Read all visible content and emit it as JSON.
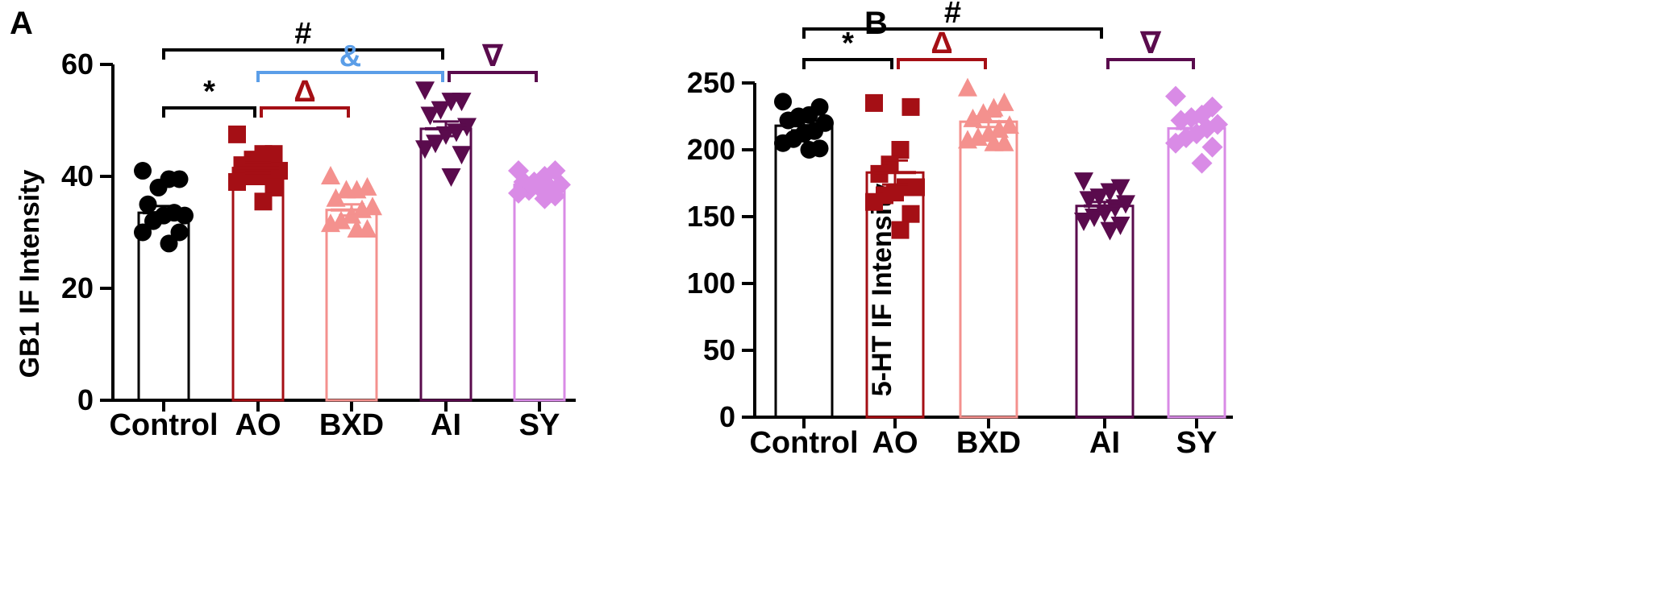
{
  "chart_data": [
    {
      "panel": "A",
      "type": "bar",
      "ylabel": "GB1 IF Intensity",
      "ylim": [
        0,
        60
      ],
      "yticks": [
        0,
        20,
        40,
        60
      ],
      "categories": [
        "Control",
        "AO",
        "BXD",
        "AI",
        "SY"
      ],
      "colors": [
        "#000000",
        "#a50f15",
        "#f4918e",
        "#5a0b4d",
        "#d98be6"
      ],
      "markers": [
        "circle",
        "square",
        "triangle-up",
        "triangle-down",
        "diamond"
      ],
      "means": [
        33.5,
        41.5,
        34.0,
        48.5,
        38.5
      ],
      "sem": [
        1.2,
        0.9,
        1.0,
        1.3,
        0.5
      ],
      "points": [
        [
          41,
          39.5,
          39.5,
          38,
          35,
          33,
          33.5,
          33,
          32,
          30,
          30,
          28
        ],
        [
          47.5,
          44,
          44,
          43,
          42,
          41,
          41,
          40,
          40,
          39,
          38,
          35.5
        ],
        [
          40,
          38,
          37.5,
          37.5,
          36,
          34.5,
          34,
          33,
          32,
          31.5,
          30.5,
          30.5
        ],
        [
          55.5,
          53.5,
          53.5,
          52,
          51,
          49,
          48,
          47.5,
          46,
          45,
          44,
          40
        ],
        [
          41,
          41,
          40,
          39,
          39,
          38.5,
          38,
          38,
          37.5,
          37,
          36.5,
          36
        ]
      ],
      "significance": [
        {
          "from": 0,
          "to": 3,
          "symbol": "#",
          "color": "#000000"
        },
        {
          "from": 1,
          "to": 3,
          "symbol": "&",
          "color": "#5b9ee8"
        },
        {
          "from": 0,
          "to": 1,
          "symbol": "*",
          "color": "#000000"
        },
        {
          "from": 1,
          "to": 2,
          "symbol": "Δ",
          "color": "#a50f15"
        },
        {
          "from": 3,
          "to": 4,
          "symbol": "∇",
          "color": "#5a0b4d"
        }
      ]
    },
    {
      "panel": "B",
      "type": "bar",
      "ylabel": "5-HT IF Intensity",
      "ylim": [
        0,
        250
      ],
      "yticks": [
        0,
        50,
        100,
        150,
        200,
        250
      ],
      "categories": [
        "Control",
        "AO",
        "BXD",
        "AI",
        "SY"
      ],
      "colors": [
        "#000000",
        "#a50f15",
        "#f4918e",
        "#5a0b4d",
        "#d98be6"
      ],
      "markers": [
        "circle",
        "square",
        "triangle-up",
        "triangle-down",
        "diamond"
      ],
      "means": [
        218,
        183,
        221,
        158,
        216
      ],
      "sem": [
        3.5,
        9.0,
        4.0,
        3.0,
        5.0
      ],
      "points": [
        [
          236,
          232,
          226,
          225,
          222,
          220,
          214,
          212,
          208,
          205,
          201,
          200
        ],
        [
          235,
          232,
          200,
          189,
          182,
          172,
          172,
          168,
          166,
          161,
          152,
          140
        ],
        [
          246,
          235,
          231,
          227,
          223,
          218,
          215,
          212,
          209,
          207,
          205,
          205
        ],
        [
          177,
          172,
          169,
          165,
          163,
          160,
          157,
          153,
          150,
          147,
          144,
          140
        ],
        [
          240,
          232,
          226,
          224,
          222,
          219,
          216,
          212,
          209,
          205,
          202,
          190
        ]
      ],
      "significance": [
        {
          "from": 0,
          "to": 3,
          "symbol": "#",
          "color": "#000000"
        },
        {
          "from": 0,
          "to": 1,
          "symbol": "*",
          "color": "#000000"
        },
        {
          "from": 1,
          "to": 2,
          "symbol": "Δ",
          "color": "#a50f15"
        },
        {
          "from": 3,
          "to": 4,
          "symbol": "∇",
          "color": "#5a0b4d"
        }
      ]
    }
  ]
}
